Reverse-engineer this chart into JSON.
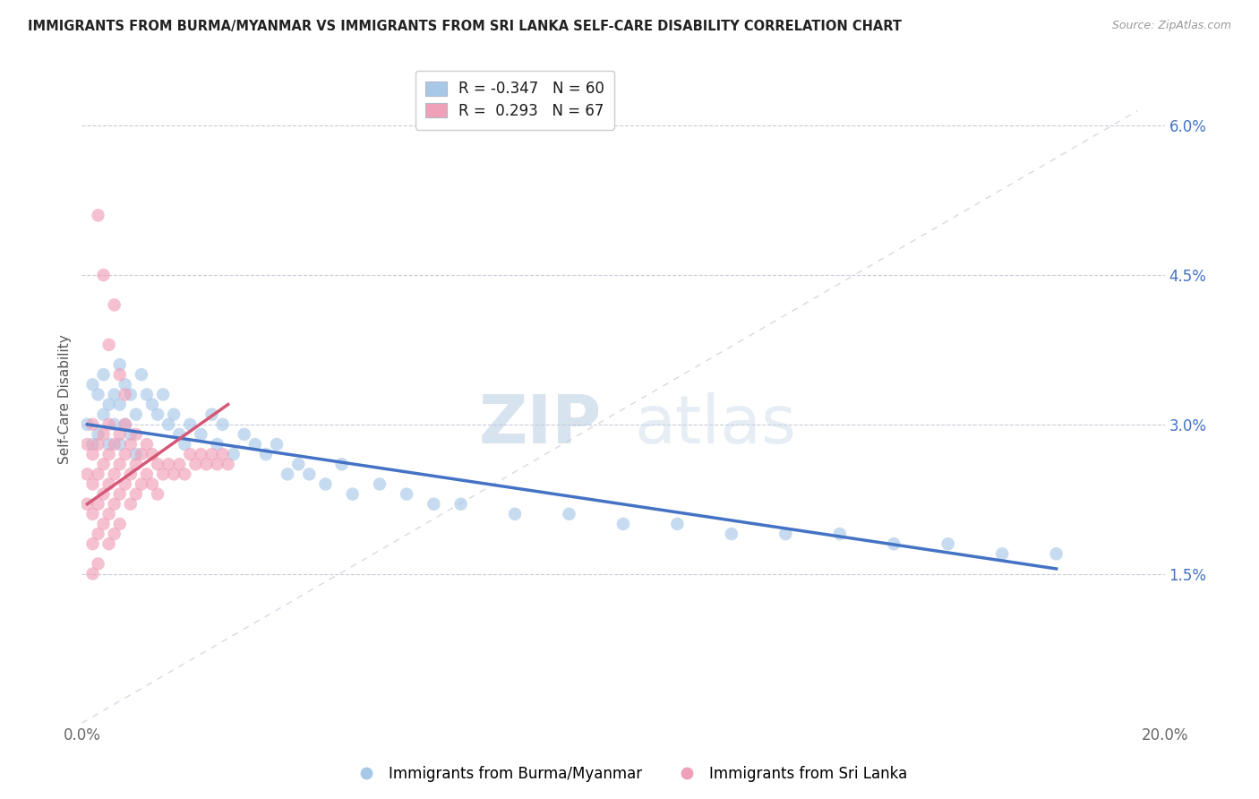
{
  "title": "IMMIGRANTS FROM BURMA/MYANMAR VS IMMIGRANTS FROM SRI LANKA SELF-CARE DISABILITY CORRELATION CHART",
  "source": "Source: ZipAtlas.com",
  "xlabel_blue": "Immigrants from Burma/Myanmar",
  "xlabel_pink": "Immigrants from Sri Lanka",
  "ylabel": "Self-Care Disability",
  "xlim": [
    0.0,
    0.2
  ],
  "ylim": [
    0.0,
    0.065
  ],
  "ytick_positions": [
    0.015,
    0.03,
    0.045,
    0.06
  ],
  "ytick_labels": [
    "1.5%",
    "3.0%",
    "4.5%",
    "6.0%"
  ],
  "R_blue": -0.347,
  "N_blue": 60,
  "R_pink": 0.293,
  "N_pink": 67,
  "blue_color": "#a8c8e8",
  "blue_line_color": "#4472c4",
  "pink_color": "#f0a0b8",
  "pink_line_color": "#d45878",
  "ref_line_color": "#c8c8d8",
  "background_color": "#ffffff",
  "watermark_zip": "ZIP",
  "watermark_atlas": "atlas",
  "blue_scatter_x": [
    0.001,
    0.002,
    0.002,
    0.003,
    0.003,
    0.004,
    0.004,
    0.005,
    0.005,
    0.006,
    0.006,
    0.007,
    0.007,
    0.007,
    0.008,
    0.008,
    0.009,
    0.009,
    0.01,
    0.01,
    0.011,
    0.012,
    0.013,
    0.014,
    0.015,
    0.016,
    0.017,
    0.018,
    0.019,
    0.02,
    0.022,
    0.024,
    0.025,
    0.026,
    0.028,
    0.03,
    0.032,
    0.034,
    0.036,
    0.038,
    0.04,
    0.042,
    0.045,
    0.048,
    0.05,
    0.055,
    0.06,
    0.065,
    0.07,
    0.08,
    0.09,
    0.1,
    0.11,
    0.12,
    0.13,
    0.14,
    0.15,
    0.16,
    0.17,
    0.18
  ],
  "blue_scatter_y": [
    0.03,
    0.034,
    0.028,
    0.033,
    0.029,
    0.035,
    0.031,
    0.032,
    0.028,
    0.033,
    0.03,
    0.036,
    0.032,
    0.028,
    0.034,
    0.03,
    0.033,
    0.029,
    0.031,
    0.027,
    0.035,
    0.033,
    0.032,
    0.031,
    0.033,
    0.03,
    0.031,
    0.029,
    0.028,
    0.03,
    0.029,
    0.031,
    0.028,
    0.03,
    0.027,
    0.029,
    0.028,
    0.027,
    0.028,
    0.025,
    0.026,
    0.025,
    0.024,
    0.026,
    0.023,
    0.024,
    0.023,
    0.022,
    0.022,
    0.021,
    0.021,
    0.02,
    0.02,
    0.019,
    0.019,
    0.019,
    0.018,
    0.018,
    0.017,
    0.017
  ],
  "pink_scatter_x": [
    0.001,
    0.001,
    0.001,
    0.002,
    0.002,
    0.002,
    0.002,
    0.002,
    0.003,
    0.003,
    0.003,
    0.003,
    0.003,
    0.004,
    0.004,
    0.004,
    0.004,
    0.005,
    0.005,
    0.005,
    0.005,
    0.005,
    0.006,
    0.006,
    0.006,
    0.006,
    0.007,
    0.007,
    0.007,
    0.007,
    0.008,
    0.008,
    0.008,
    0.009,
    0.009,
    0.009,
    0.01,
    0.01,
    0.01,
    0.011,
    0.011,
    0.012,
    0.012,
    0.013,
    0.013,
    0.014,
    0.014,
    0.015,
    0.016,
    0.017,
    0.018,
    0.019,
    0.02,
    0.021,
    0.022,
    0.023,
    0.024,
    0.025,
    0.026,
    0.027,
    0.003,
    0.004,
    0.005,
    0.006,
    0.007,
    0.008,
    0.002
  ],
  "pink_scatter_y": [
    0.028,
    0.025,
    0.022,
    0.03,
    0.027,
    0.024,
    0.021,
    0.018,
    0.028,
    0.025,
    0.022,
    0.019,
    0.016,
    0.029,
    0.026,
    0.023,
    0.02,
    0.03,
    0.027,
    0.024,
    0.021,
    0.018,
    0.028,
    0.025,
    0.022,
    0.019,
    0.029,
    0.026,
    0.023,
    0.02,
    0.03,
    0.027,
    0.024,
    0.028,
    0.025,
    0.022,
    0.029,
    0.026,
    0.023,
    0.027,
    0.024,
    0.028,
    0.025,
    0.027,
    0.024,
    0.026,
    0.023,
    0.025,
    0.026,
    0.025,
    0.026,
    0.025,
    0.027,
    0.026,
    0.027,
    0.026,
    0.027,
    0.026,
    0.027,
    0.026,
    0.051,
    0.045,
    0.038,
    0.042,
    0.035,
    0.033,
    0.015
  ],
  "blue_trend_x": [
    0.001,
    0.18
  ],
  "blue_trend_y": [
    0.03,
    0.0155
  ],
  "pink_trend_x": [
    0.001,
    0.027
  ],
  "pink_trend_y": [
    0.022,
    0.032
  ]
}
